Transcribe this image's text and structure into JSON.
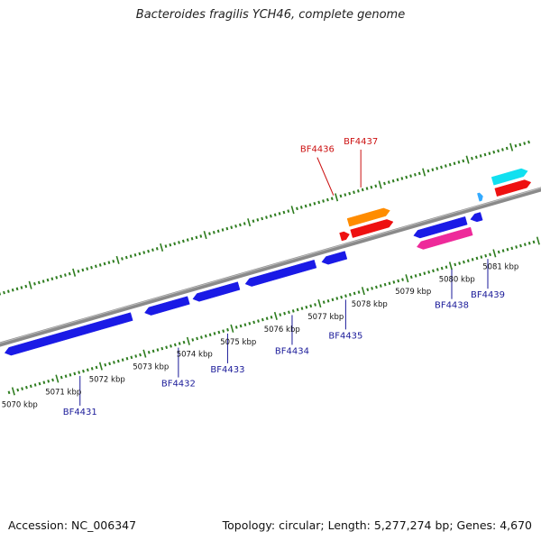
{
  "title": "Bacteroides fragilis YCH46, complete genome",
  "footer": {
    "accession": "Accession: NC_006347",
    "summary": "Topology: circular; Length: 5,277,274 bp; Genes: 4,670"
  },
  "colors": {
    "backbone": "#8a8a8a",
    "ticks": "#2e7d1f",
    "label_forward": "#cc1111",
    "label_reverse": "#1a1a99",
    "gene_blue": "#1a1ae6",
    "gene_red": "#ee1111",
    "gene_orange": "#ff8c00",
    "gene_magenta": "#ee2a9a",
    "gene_cyan": "#11e0f0",
    "gene_lightblue": "#33aaff"
  },
  "scale": {
    "labels": [
      {
        "kbp": 5070,
        "text": "5070 kbp"
      },
      {
        "kbp": 5071,
        "text": "5071 kbp"
      },
      {
        "kbp": 5072,
        "text": "5072 kbp"
      },
      {
        "kbp": 5073,
        "text": "5073 kbp"
      },
      {
        "kbp": 5074,
        "text": "5074 kbp"
      },
      {
        "kbp": 5075,
        "text": "5075 kbp"
      },
      {
        "kbp": 5076,
        "text": "5076 kbp"
      },
      {
        "kbp": 5077,
        "text": "5077 kbp"
      },
      {
        "kbp": 5078,
        "text": "5078 kbp"
      },
      {
        "kbp": 5079,
        "text": "5079 kbp"
      },
      {
        "kbp": 5080,
        "text": "5080 kbp"
      },
      {
        "kbp": 5081,
        "text": "5081 kbp"
      }
    ]
  },
  "genes": [
    {
      "name": "BF4431",
      "strand": "reverse",
      "row": 1,
      "start": 5070.05,
      "end": 5072.95,
      "color": "gene_blue",
      "label": "BF4431"
    },
    {
      "name": "BF4432",
      "strand": "reverse",
      "row": 1,
      "start": 5073.25,
      "end": 5074.25,
      "color": "gene_blue",
      "label": "BF4432"
    },
    {
      "name": "BF4433",
      "strand": "reverse",
      "row": 1,
      "start": 5074.35,
      "end": 5075.4,
      "color": "gene_blue",
      "label": "BF4433"
    },
    {
      "name": "BF4434",
      "strand": "reverse",
      "row": 1,
      "start": 5075.55,
      "end": 5077.15,
      "color": "gene_blue",
      "label": "BF4434"
    },
    {
      "name": "BF4435",
      "strand": "reverse",
      "row": 1,
      "start": 5077.3,
      "end": 5077.85,
      "color": "gene_blue",
      "label": "BF4435"
    },
    {
      "name": "BF4436",
      "strand": "forward",
      "row": 1,
      "start": 5077.85,
      "end": 5078.05,
      "color": "gene_red",
      "label": "BF4436"
    },
    {
      "name": "BF4437",
      "strand": "forward",
      "row": 1,
      "start": 5078.1,
      "end": 5079.05,
      "color": "gene_red",
      "label": "BF4437"
    },
    {
      "name": "",
      "strand": "forward",
      "row": 2,
      "start": 5078.1,
      "end": 5079.05,
      "color": "gene_orange",
      "label": ""
    },
    {
      "name": "BF4438",
      "strand": "reverse",
      "row": 1,
      "start": 5079.4,
      "end": 5080.6,
      "color": "gene_blue",
      "label": "BF4438"
    },
    {
      "name": "",
      "strand": "reverse",
      "row": 2,
      "start": 5079.4,
      "end": 5080.65,
      "color": "gene_magenta",
      "label": ""
    },
    {
      "name": "BF4439",
      "strand": "reverse",
      "row": 1,
      "start": 5080.7,
      "end": 5080.95,
      "color": "gene_blue",
      "label": "BF4439"
    },
    {
      "name": "",
      "strand": "forward",
      "row": 1,
      "start": 5081.0,
      "end": 5081.1,
      "color": "gene_lightblue",
      "label": ""
    },
    {
      "name": "",
      "strand": "forward",
      "row": 1,
      "start": 5081.4,
      "end": 5082.2,
      "color": "gene_red",
      "label": ""
    },
    {
      "name": "",
      "strand": "forward",
      "row": 2,
      "start": 5081.4,
      "end": 5082.2,
      "color": "gene_cyan",
      "label": ""
    }
  ]
}
